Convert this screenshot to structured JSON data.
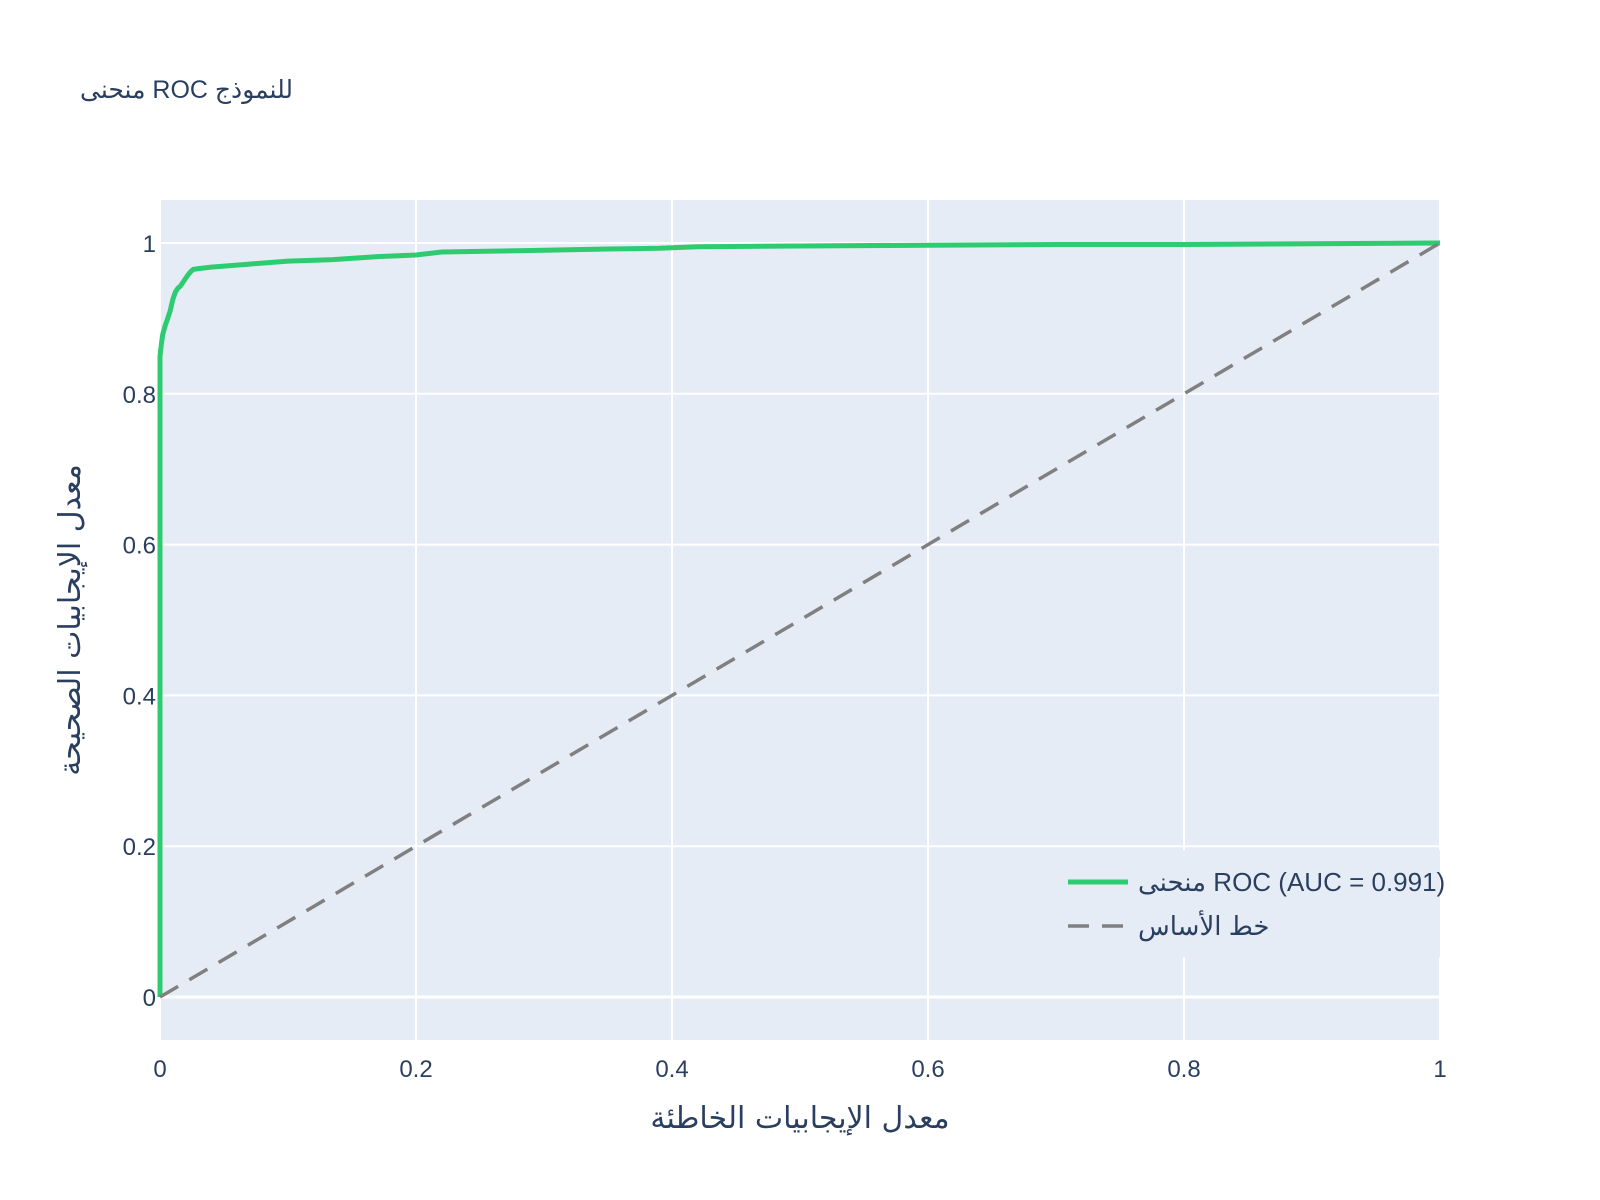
{
  "chart_data": {
    "type": "line",
    "title": "منحنى ROC للنموذج",
    "xlabel": "معدل الإيجابيات الخاطئة",
    "ylabel": "معدل الإيجابيات الصحيحة",
    "xlim": [
      0,
      1
    ],
    "ylim": [
      -0.057,
      1.057
    ],
    "x_ticks": [
      0,
      0.2,
      0.4,
      0.6,
      0.8,
      1
    ],
    "x_tick_labels": [
      "0",
      "0.2",
      "0.4",
      "0.6",
      "0.8",
      "1"
    ],
    "y_ticks": [
      0,
      0.2,
      0.4,
      0.6,
      0.8,
      1
    ],
    "y_tick_labels": [
      "0",
      "0.2",
      "0.4",
      "0.6",
      "0.8",
      "1"
    ],
    "grid": true,
    "plot_background": "#e5ecf6",
    "legend_position": "bottom-right",
    "series": [
      {
        "name": "منحنى ROC (AUC = 0.991)",
        "color": "#2ecc71",
        "dash": "solid",
        "x": [
          0,
          0,
          0.001,
          0.002,
          0.004,
          0.006,
          0.008,
          0.01,
          0.012,
          0.014,
          0.016,
          0.018,
          0.02,
          0.022,
          0.024,
          0.026,
          0.03,
          0.04,
          0.055,
          0.07,
          0.085,
          0.1,
          0.135,
          0.17,
          0.2,
          0.21,
          0.22,
          0.29,
          0.35,
          0.39,
          0.42,
          0.5,
          0.6,
          0.7,
          0.8,
          0.9,
          1
        ],
        "y": [
          0,
          0.85,
          0.865,
          0.878,
          0.89,
          0.9,
          0.91,
          0.925,
          0.935,
          0.94,
          0.943,
          0.948,
          0.953,
          0.958,
          0.962,
          0.965,
          0.966,
          0.968,
          0.97,
          0.972,
          0.974,
          0.976,
          0.978,
          0.982,
          0.984,
          0.986,
          0.988,
          0.99,
          0.992,
          0.993,
          0.995,
          0.996,
          0.997,
          0.998,
          0.998,
          0.999,
          1
        ]
      },
      {
        "name": "خط الأساس",
        "color": "#808080",
        "dash": "dash",
        "x": [
          0,
          1
        ],
        "y": [
          0,
          1
        ]
      }
    ]
  }
}
